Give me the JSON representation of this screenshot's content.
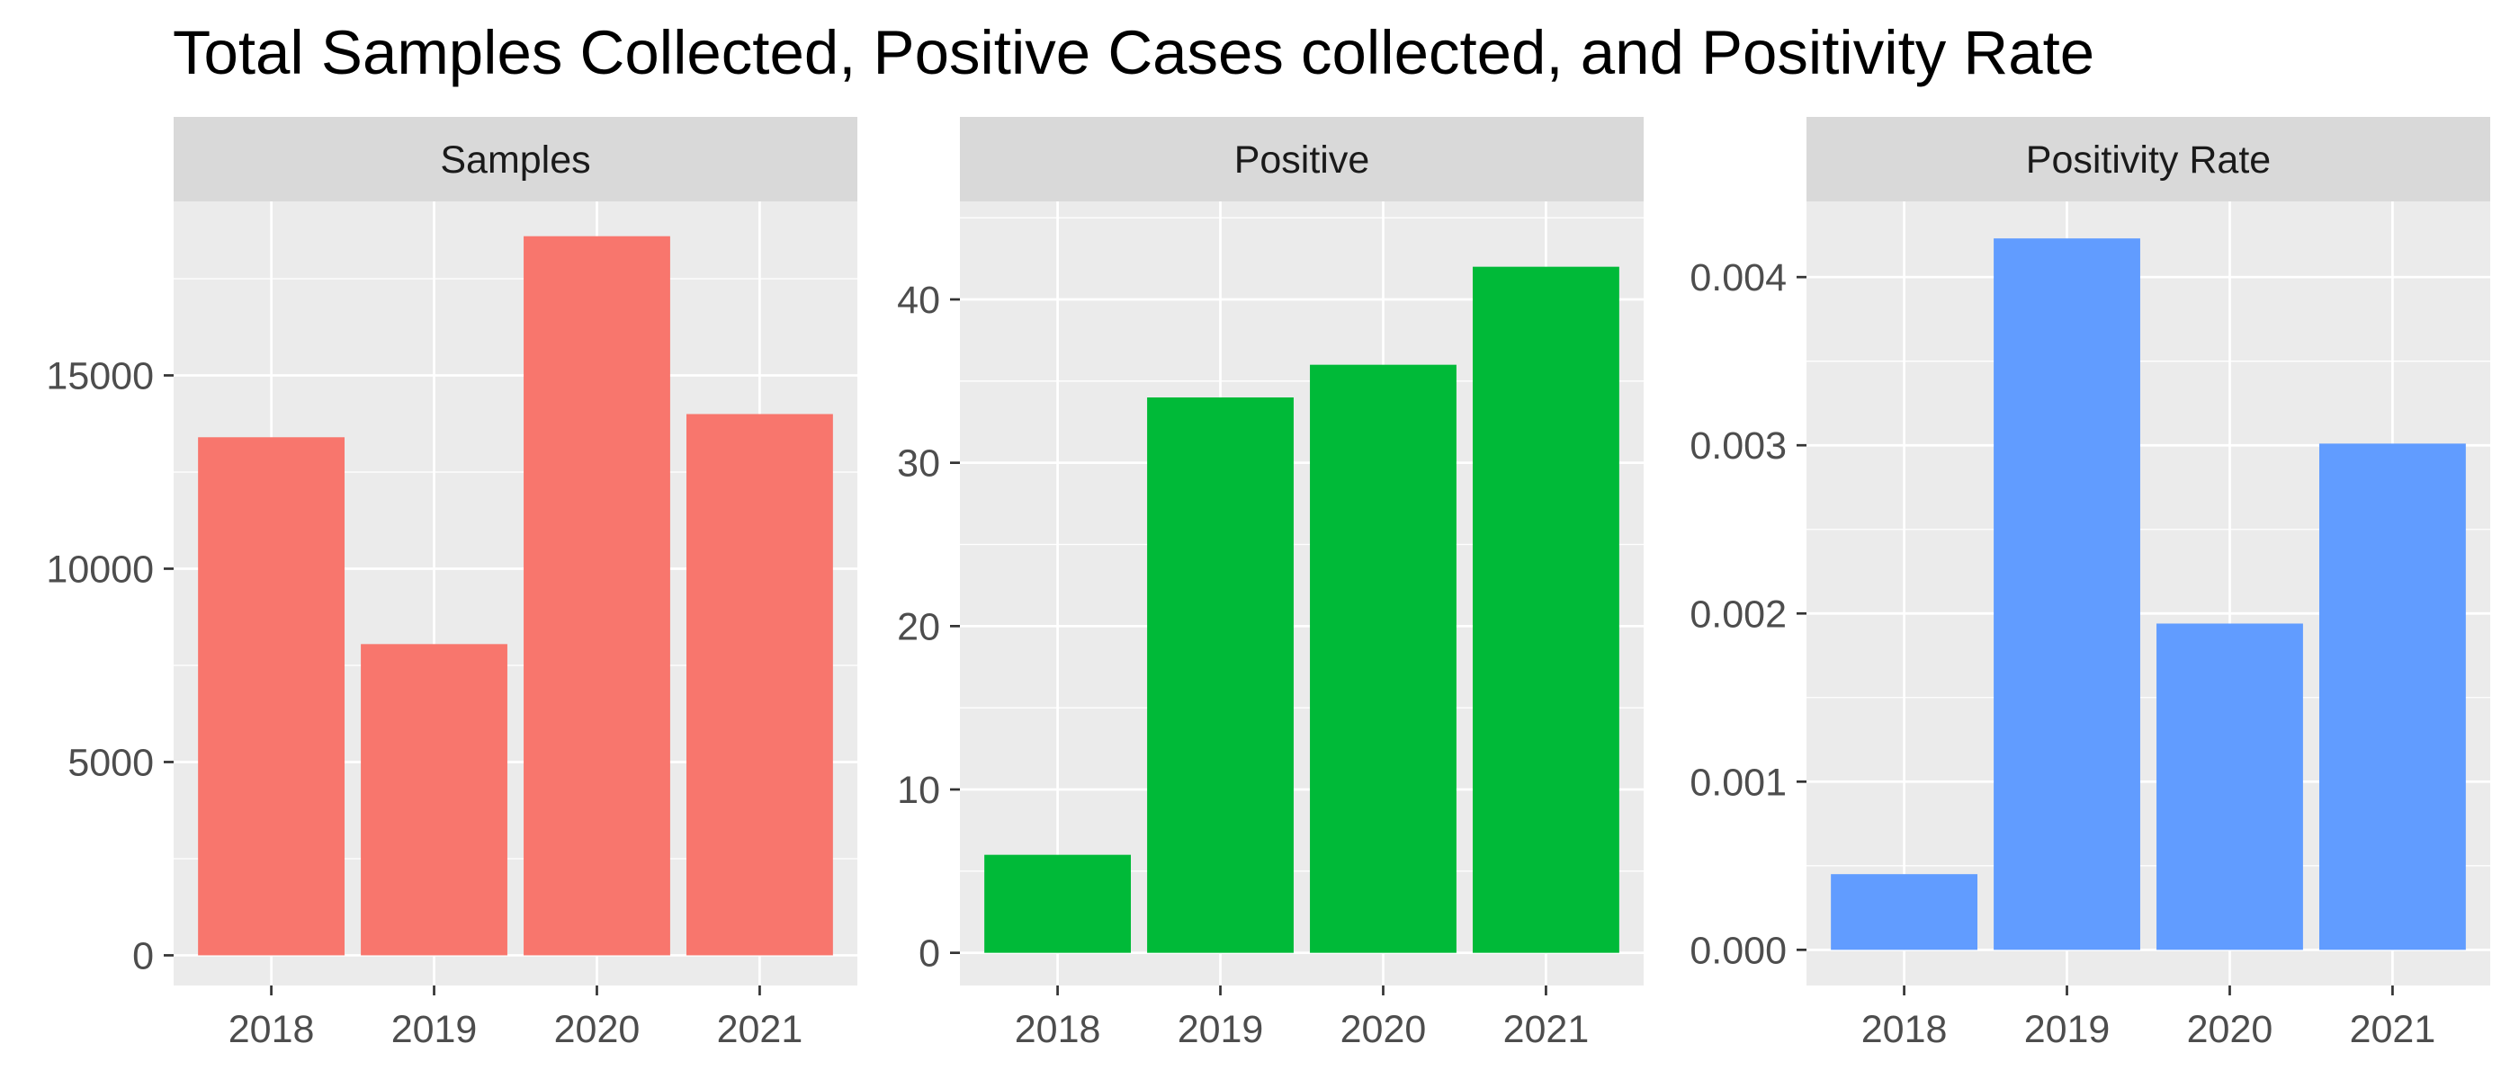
{
  "title": "Total Samples Collected, Positive Cases collected, and Positivity Rate",
  "chart_data": {
    "type": "bar",
    "title": "Total Samples Collected, Positive Cases collected, and Positivity Rate",
    "categories": [
      "2018",
      "2019",
      "2020",
      "2021"
    ],
    "grid": true,
    "legend": "none",
    "facets": [
      {
        "name": "Samples",
        "color": "#F8766D",
        "values": [
          13400,
          8050,
          18600,
          14000
        ],
        "ylim": [
          -780,
          19500
        ],
        "yticks": [
          0,
          5000,
          10000,
          15000
        ],
        "ytick_labels": [
          "0",
          "5000",
          "10000",
          "15000"
        ]
      },
      {
        "name": "Positive",
        "color": "#00BA38",
        "values": [
          6,
          34,
          36,
          42
        ],
        "ylim": [
          -2,
          46
        ],
        "yticks": [
          0,
          10,
          20,
          30,
          40
        ],
        "ytick_labels": [
          "0",
          "10",
          "20",
          "30",
          "40"
        ]
      },
      {
        "name": "Positivity Rate",
        "color": "#619CFF",
        "values": [
          0.00045,
          0.00423,
          0.00194,
          0.00301
        ],
        "ylim": [
          -0.000212,
          0.00445
        ],
        "yticks": [
          0,
          0.001,
          0.002,
          0.003,
          0.004
        ],
        "ytick_labels": [
          "0.000",
          "0.001",
          "0.002",
          "0.003",
          "0.004"
        ]
      }
    ]
  }
}
